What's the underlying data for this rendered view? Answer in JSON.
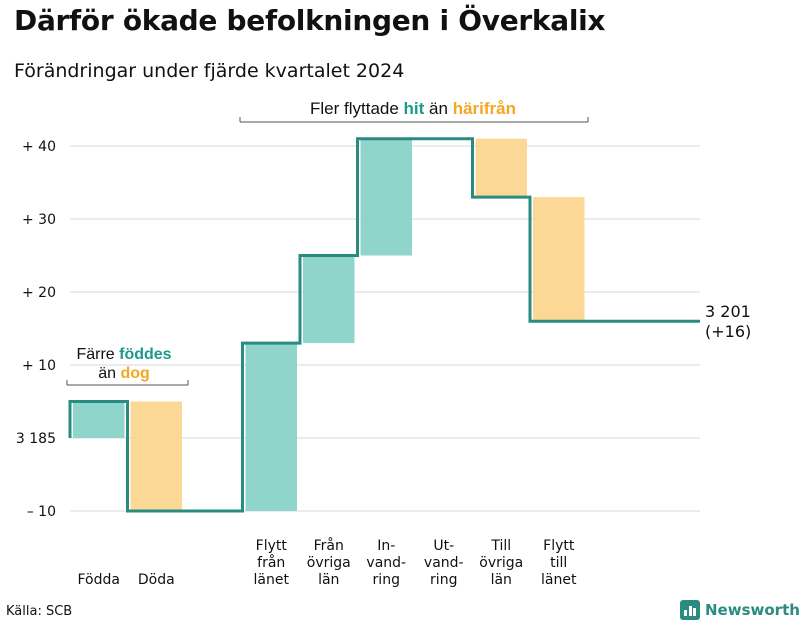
{
  "header": {
    "title": "Därför ökade befolkningen i Överkalix",
    "subtitle": "Förändringar under fjärde kvartalet 2024"
  },
  "footer": {
    "source": "Källa: SCB",
    "brand": "Newsworthy"
  },
  "colors": {
    "increase": "#8fd5cc",
    "decrease": "#fcd896",
    "line": "#2a8b80",
    "grid": "#d9d9d9",
    "accent_green": "#1d9a8c",
    "accent_orange": "#f5a623"
  },
  "chart_data": {
    "type": "waterfall",
    "title": "Därför ökade befolkningen i Överkalix",
    "subtitle": "Förändringar under fjärde kvartalet 2024",
    "start_value": 3185,
    "end_value": 3201,
    "end_label_line1": "3 201",
    "end_label_line2": "(+16)",
    "ylim": [
      -11,
      45
    ],
    "y_ticks": [
      {
        "value": -10,
        "label": "– 10"
      },
      {
        "value": 0,
        "label": "3 185"
      },
      {
        "value": 10,
        "label": "+ 10"
      },
      {
        "value": 20,
        "label": "+ 20"
      },
      {
        "value": 30,
        "label": "+ 30"
      },
      {
        "value": 40,
        "label": "+ 40"
      }
    ],
    "categories": [
      {
        "label": [
          "Födda"
        ],
        "change": 5
      },
      {
        "label": [
          "Döda"
        ],
        "change": -15
      },
      {
        "label": [
          ""
        ],
        "change": 0
      },
      {
        "label": [
          "Flytt",
          "från",
          "länet"
        ],
        "change": 23
      },
      {
        "label": [
          "Från",
          "övriga",
          "län"
        ],
        "change": 12
      },
      {
        "label": [
          "In-",
          "vand-",
          "ring"
        ],
        "change": 16
      },
      {
        "label": [
          "Ut-",
          "vand-",
          "ring"
        ],
        "change": 0
      },
      {
        "label": [
          "Till",
          "övriga",
          "län"
        ],
        "change": -8
      },
      {
        "label": [
          "Flytt",
          "till",
          "länet"
        ],
        "change": -17
      },
      {
        "label": [
          ""
        ],
        "change": 0
      }
    ],
    "annotations": {
      "births": {
        "line1": "Färre",
        "highlight1": "föddes",
        "line2": "än",
        "highlight2": "dog"
      },
      "migration": {
        "text": "Fler flyttade",
        "highlight1": "hit",
        "middle": "än",
        "highlight2": "härifrån"
      }
    }
  }
}
